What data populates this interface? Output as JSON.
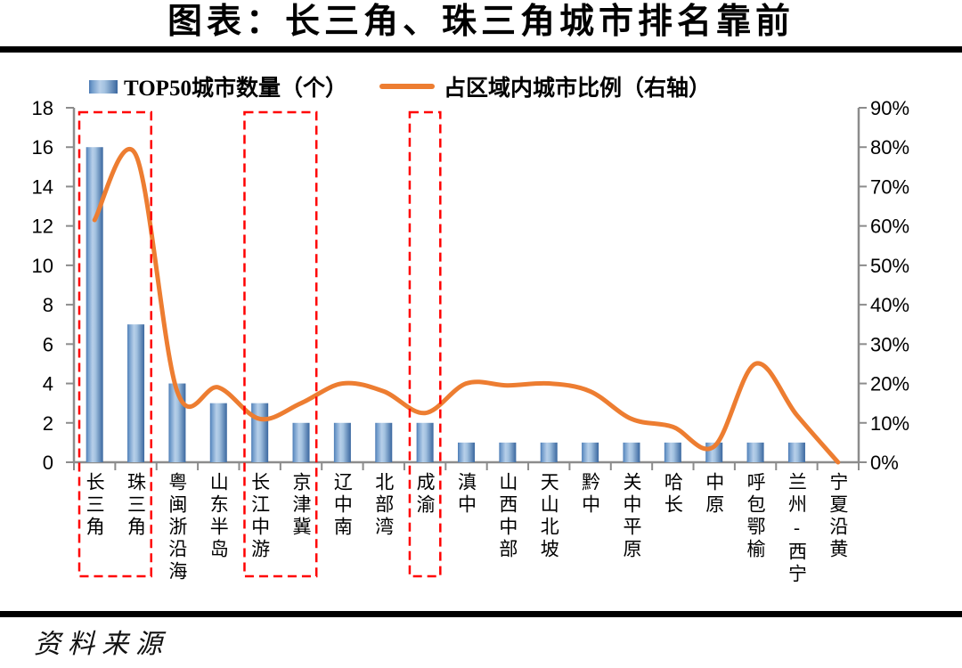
{
  "page": {
    "title": "图表：长三角、珠三角城市排名靠前",
    "source_label": "资料来源"
  },
  "legend": {
    "bars_label": "TOP50城市数量（个）",
    "line_label": "占区域内城市比例（右轴）"
  },
  "chart_data": {
    "type": "bar",
    "subtype": "bar+line combo, line on secondary axis",
    "title": "图表：长三角、珠三角城市排名靠前",
    "categories": [
      "长三角",
      "珠三角",
      "粤闽浙沿海",
      "山东半岛",
      "长江中游",
      "京津冀",
      "辽中南",
      "北部湾",
      "成渝",
      "滇中",
      "山西中部",
      "天山北坡",
      "黔中",
      "关中平原",
      "哈长",
      "中原",
      "呼包鄂榆",
      "兰州-西宁",
      "宁夏沿黄"
    ],
    "series": [
      {
        "name": "TOP50城市数量（个）",
        "type": "bar",
        "axis": "left",
        "values": [
          16,
          7,
          4,
          3,
          3,
          2,
          2,
          2,
          2,
          1,
          1,
          1,
          1,
          1,
          1,
          1,
          1,
          1,
          0
        ]
      },
      {
        "name": "占区域内城市比例（右轴）",
        "type": "line",
        "axis": "right",
        "unit": "%",
        "values": [
          61.5,
          78,
          18,
          19,
          11,
          15,
          20,
          18,
          12.5,
          20,
          19.5,
          20,
          18,
          11,
          9,
          4,
          25,
          12,
          0
        ]
      }
    ],
    "left_axis": {
      "min": 0,
      "max": 18,
      "tick_step": 2,
      "ticks": [
        "0",
        "2",
        "4",
        "6",
        "8",
        "10",
        "12",
        "14",
        "16",
        "18"
      ]
    },
    "right_axis": {
      "min": 0,
      "max": 90,
      "tick_step": 10,
      "ticks": [
        "0%",
        "10%",
        "20%",
        "30%",
        "40%",
        "50%",
        "60%",
        "70%",
        "80%",
        "90%"
      ]
    },
    "highlight_boxes": {
      "color": "#FF0000",
      "style": "dashed",
      "category_ranges": [
        [
          0,
          1
        ],
        [
          4,
          5
        ],
        [
          8,
          8
        ]
      ]
    },
    "colors": {
      "bar_main": "#4F81BD",
      "bar_light": "#B7CFE9",
      "bar_dark": "#3A679F",
      "line": "#ED7D31",
      "axis": "#8C8C8C",
      "highlight": "#FF0000"
    },
    "grid": "off",
    "legend_position": "top",
    "smoothed_line": true
  }
}
